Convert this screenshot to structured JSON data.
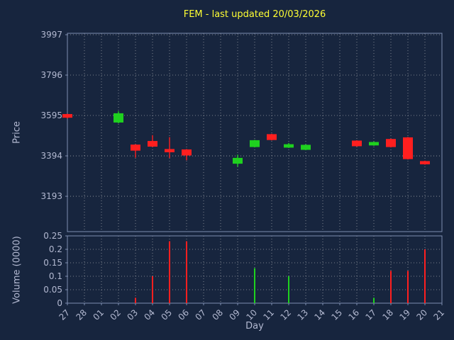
{
  "title": "FEM - last updated 20/03/2026",
  "axes": {
    "price_label": "Price",
    "volume_label": "Volume (0000)",
    "x_label": "Day"
  },
  "colors": {
    "background": "#17253e",
    "title": "#ffff33",
    "text": "#b3b9d1",
    "grid": "#d0d0d0",
    "spine": "#7e8db0",
    "up": "#1fd11f",
    "down": "#ff1f1f"
  },
  "chart_data": {
    "type": "candlestick+volume",
    "title": "FEM - last updated 20/03/2026",
    "xlabel": "Day",
    "ylabel_price": "Price",
    "ylabel_volume": "Volume (0000)",
    "legend": "none",
    "grid": "dotted",
    "categories": [
      "27",
      "28",
      "01",
      "02",
      "03",
      "04",
      "05",
      "06",
      "07",
      "08",
      "09",
      "10",
      "11",
      "12",
      "13",
      "14",
      "15",
      "16",
      "17",
      "18",
      "19",
      "20",
      "21"
    ],
    "price_ticks": [
      3997,
      3796,
      3595,
      3394,
      3193
    ],
    "price_range": [
      3017,
      4004
    ],
    "volume_ticks": [
      0,
      0.05,
      0.1,
      0.15,
      0.2,
      0.25
    ],
    "volume_range": [
      0,
      0.25
    ],
    "candles": [
      {
        "day": "27",
        "open": 3602,
        "high": 3604,
        "low": 3580,
        "close": 3584
      },
      {
        "day": "02",
        "open": 3560,
        "high": 3616,
        "low": 3556,
        "close": 3606
      },
      {
        "day": "03",
        "open": 3450,
        "high": 3452,
        "low": 3385,
        "close": 3420
      },
      {
        "day": "04",
        "open": 3468,
        "high": 3497,
        "low": 3438,
        "close": 3440
      },
      {
        "day": "05",
        "open": 3428,
        "high": 3487,
        "low": 3383,
        "close": 3412
      },
      {
        "day": "06",
        "open": 3426,
        "high": 3428,
        "low": 3372,
        "close": 3396
      },
      {
        "day": "09",
        "open": 3355,
        "high": 3400,
        "low": 3340,
        "close": 3384
      },
      {
        "day": "10",
        "open": 3438,
        "high": 3474,
        "low": 3436,
        "close": 3472
      },
      {
        "day": "11",
        "open": 3502,
        "high": 3504,
        "low": 3471,
        "close": 3473
      },
      {
        "day": "12",
        "open": 3435,
        "high": 3458,
        "low": 3433,
        "close": 3452
      },
      {
        "day": "13",
        "open": 3424,
        "high": 3451,
        "low": 3422,
        "close": 3449
      },
      {
        "day": "16",
        "open": 3470,
        "high": 3472,
        "low": 3440,
        "close": 3442
      },
      {
        "day": "17",
        "open": 3446,
        "high": 3465,
        "low": 3444,
        "close": 3463
      },
      {
        "day": "18",
        "open": 3478,
        "high": 3480,
        "low": 3436,
        "close": 3438
      },
      {
        "day": "19",
        "open": 3486,
        "high": 3488,
        "low": 3376,
        "close": 3378
      },
      {
        "day": "20",
        "open": 3368,
        "high": 3370,
        "low": 3350,
        "close": 3352
      }
    ],
    "volumes": [
      {
        "day": "03",
        "value": 0.02
      },
      {
        "day": "04",
        "value": 0.1
      },
      {
        "day": "05",
        "value": 0.23
      },
      {
        "day": "06",
        "value": 0.23
      },
      {
        "day": "10",
        "value": 0.13
      },
      {
        "day": "12",
        "value": 0.1
      },
      {
        "day": "17",
        "value": 0.02
      },
      {
        "day": "18",
        "value": 0.12
      },
      {
        "day": "19",
        "value": 0.12
      },
      {
        "day": "20",
        "value": 0.2
      }
    ]
  }
}
